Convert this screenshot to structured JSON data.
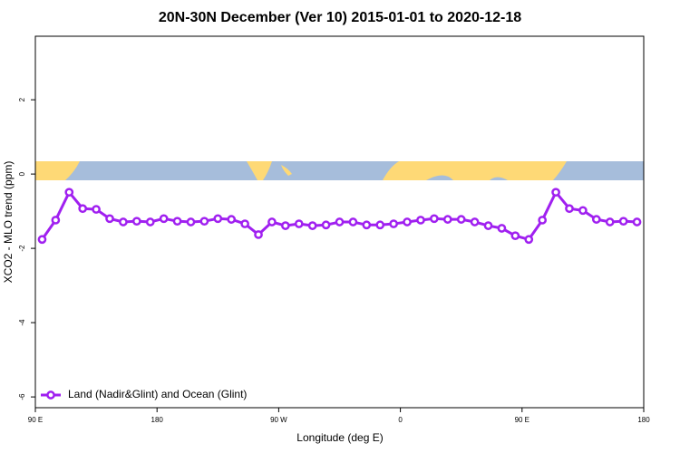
{
  "chart_data": {
    "type": "line",
    "title": "20N-30N December (Ver 10)   2015-01-01 to 2020-12-18",
    "xlabel": "Longitude (deg E)",
    "ylabel": "XCO2 - MLO trend (ppm)",
    "x": [
      95,
      105,
      115,
      125,
      135,
      145,
      155,
      165,
      175,
      185,
      195,
      205,
      215,
      225,
      235,
      245,
      255,
      265,
      275,
      285,
      295,
      305,
      315,
      325,
      335,
      345,
      355,
      365,
      375,
      385,
      395,
      405,
      415,
      425,
      435,
      445,
      455,
      465,
      475,
      485,
      495,
      505,
      515,
      525,
      535
    ],
    "series": [
      {
        "name": "Land (Nadir&Glint) and Ocean (Glint)",
        "color": "#a020f0",
        "values": [
          -1.76,
          -1.24,
          -0.49,
          -0.93,
          -0.95,
          -1.2,
          -1.29,
          -1.27,
          -1.29,
          -1.2,
          -1.27,
          -1.29,
          -1.27,
          -1.2,
          -1.22,
          -1.34,
          -1.63,
          -1.29,
          -1.39,
          -1.34,
          -1.39,
          -1.37,
          -1.29,
          -1.29,
          -1.37,
          -1.37,
          -1.34,
          -1.29,
          -1.24,
          -1.2,
          -1.22,
          -1.22,
          -1.29,
          -1.39,
          -1.46,
          -1.66,
          -1.76,
          -1.24,
          -0.49,
          -0.93,
          -0.98,
          -1.22,
          -1.29,
          -1.27,
          -1.29
        ]
      }
    ],
    "xlim": [
      90,
      540
    ],
    "xticks": [
      {
        "value": 90,
        "label": "90 E"
      },
      180,
      {
        "value": 270,
        "label": "90 W"
      },
      {
        "value": 360,
        "label": "0"
      },
      {
        "value": 450,
        "label": "90 E"
      },
      {
        "value": 540,
        "label": "180"
      }
    ],
    "ylim": [
      -6.29,
      3.71
    ],
    "yticks": [
      -6,
      -4,
      -2,
      0,
      2
    ],
    "legend": "bottom-left"
  }
}
